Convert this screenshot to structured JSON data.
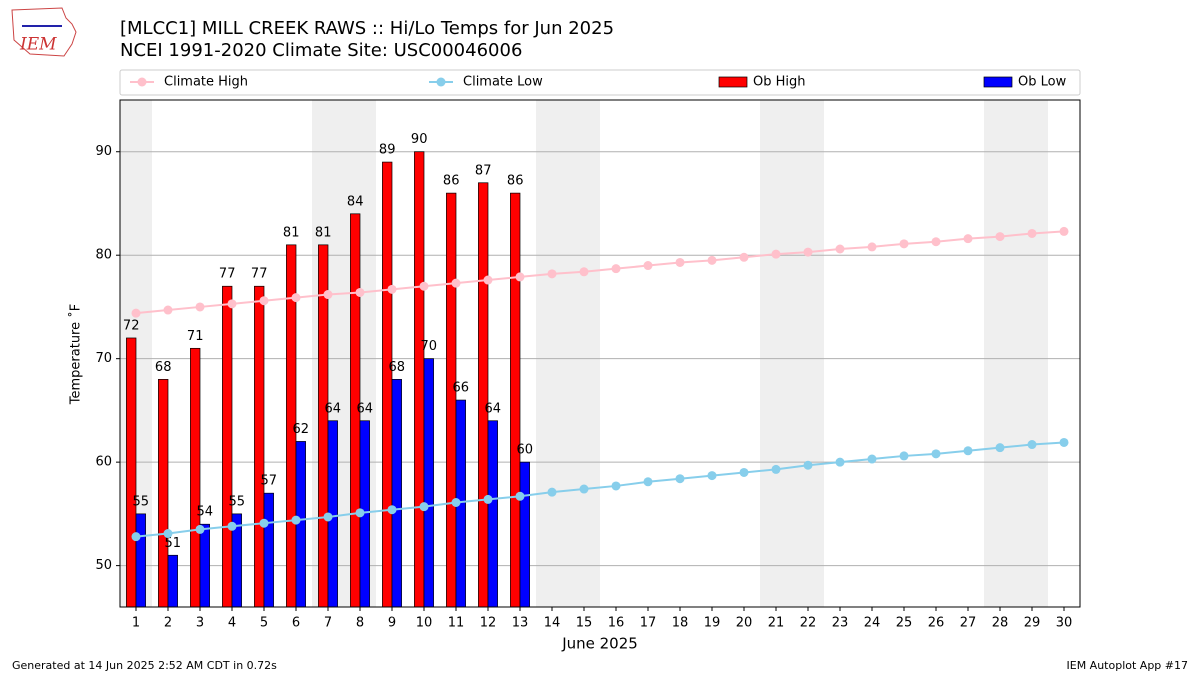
{
  "logo_text": "IEM",
  "footer_left": "Generated at 14 Jun 2025 2:52 AM CDT in 0.72s",
  "footer_right": "IEM Autoplot App #17",
  "chart_data": {
    "type": "bar",
    "title": "[MLCC1] MILL CREEK RAWS :: Hi/Lo Temps for Jun 2025",
    "subtitle": "NCEI 1991-2020 Climate Site: USC00046006",
    "xlabel": "June 2025",
    "ylabel": "Temperature ˚F",
    "x": [
      1,
      2,
      3,
      4,
      5,
      6,
      7,
      8,
      9,
      10,
      11,
      12,
      13,
      14,
      15,
      16,
      17,
      18,
      19,
      20,
      21,
      22,
      23,
      24,
      25,
      26,
      27,
      28,
      29,
      30
    ],
    "xlim": [
      0.5,
      30.5
    ],
    "xticks": [
      1,
      2,
      3,
      4,
      5,
      6,
      7,
      8,
      9,
      10,
      11,
      12,
      13,
      14,
      15,
      16,
      17,
      18,
      19,
      20,
      21,
      22,
      23,
      24,
      25,
      26,
      27,
      28,
      29,
      30
    ],
    "ylim": [
      46,
      95
    ],
    "yticks": [
      50,
      60,
      70,
      80,
      90
    ],
    "grid": true,
    "series": [
      {
        "name": "Climate High",
        "type": "line",
        "color": "#ffc0cb",
        "values": [
          74.4,
          74.7,
          75.0,
          75.3,
          75.6,
          75.9,
          76.2,
          76.4,
          76.7,
          77.0,
          77.3,
          77.6,
          77.9,
          78.2,
          78.4,
          78.7,
          79.0,
          79.3,
          79.5,
          79.8,
          80.1,
          80.3,
          80.6,
          80.8,
          81.1,
          81.3,
          81.6,
          81.8,
          82.1,
          82.3
        ]
      },
      {
        "name": "Climate Low",
        "type": "line",
        "color": "#87ceeb",
        "values": [
          52.8,
          53.1,
          53.5,
          53.8,
          54.1,
          54.4,
          54.7,
          55.1,
          55.4,
          55.7,
          56.1,
          56.4,
          56.7,
          57.1,
          57.4,
          57.7,
          58.1,
          58.4,
          58.7,
          59.0,
          59.3,
          59.7,
          60.0,
          60.3,
          60.6,
          60.8,
          61.1,
          61.4,
          61.7,
          61.9
        ]
      },
      {
        "name": "Ob High",
        "type": "bar",
        "color": "#ff0000",
        "values": [
          72,
          68,
          71,
          77,
          77,
          81,
          81,
          84,
          89,
          90,
          86,
          87,
          86,
          null,
          null,
          null,
          null,
          null,
          null,
          null,
          null,
          null,
          null,
          null,
          null,
          null,
          null,
          null,
          null,
          null
        ]
      },
      {
        "name": "Ob Low",
        "type": "bar",
        "color": "#0000ff",
        "values": [
          55,
          51,
          54,
          55,
          57,
          62,
          64,
          64,
          68,
          70,
          66,
          64,
          60,
          null,
          null,
          null,
          null,
          null,
          null,
          null,
          null,
          null,
          null,
          null,
          null,
          null,
          null,
          null,
          null,
          null
        ]
      }
    ]
  }
}
